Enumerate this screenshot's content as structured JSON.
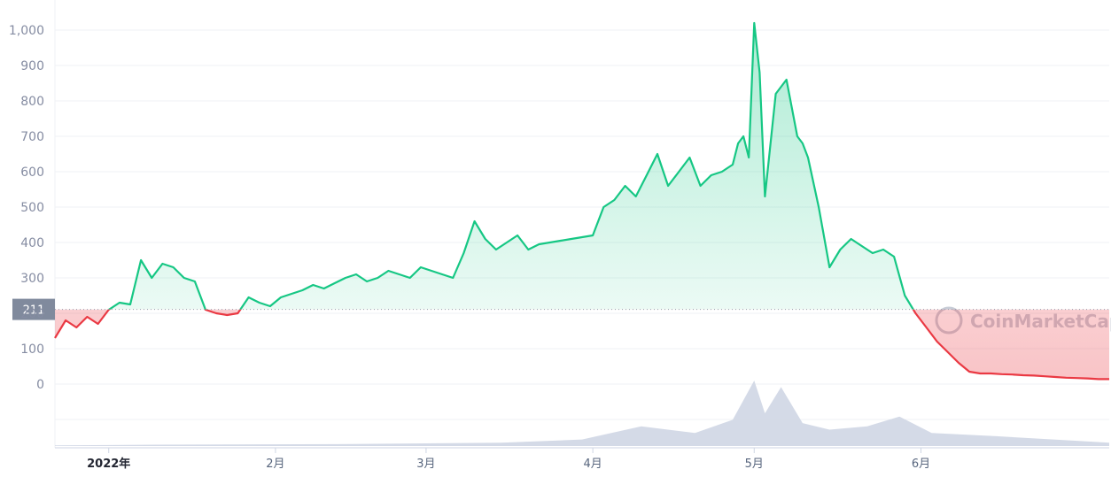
{
  "chart_data": {
    "type": "area",
    "title": "",
    "ylim": [
      0,
      1000
    ],
    "yticks": [
      "0",
      "100",
      "200",
      "300",
      "400",
      "500",
      "600",
      "700",
      "800",
      "900",
      "1,000"
    ],
    "xticks": [
      {
        "label": "2022年",
        "x": "2022-01-01",
        "bold": true
      },
      {
        "label": "2月",
        "x": "2022-02-01",
        "bold": false
      },
      {
        "label": "3月",
        "x": "2022-03-01",
        "bold": false
      },
      {
        "label": "4月",
        "x": "2022-04-01",
        "bold": false
      },
      {
        "label": "5月",
        "x": "2022-05-01",
        "bold": false
      },
      {
        "label": "6月",
        "x": "2022-06-01",
        "bold": false
      }
    ],
    "reference_value": 211,
    "reference_label": "211",
    "colors": {
      "above": "#16c784",
      "below": "#ea3943",
      "grid": "#eff2f5",
      "volume": "#cfd6e4",
      "ref_badge": "#808a9d"
    },
    "watermark": "CoinMarketCap",
    "series": [
      {
        "x": [
          "2021-12-22",
          "2021-12-24",
          "2021-12-26",
          "2021-12-28",
          "2021-12-30",
          "2022-01-01",
          "2022-01-03",
          "2022-01-05",
          "2022-01-07",
          "2022-01-09",
          "2022-01-11",
          "2022-01-13",
          "2022-01-15",
          "2022-01-17",
          "2022-01-19",
          "2022-01-21",
          "2022-01-23",
          "2022-01-25",
          "2022-01-27",
          "2022-01-29",
          "2022-01-31",
          "2022-02-02",
          "2022-02-04",
          "2022-02-06",
          "2022-02-08",
          "2022-02-10",
          "2022-02-12",
          "2022-02-14",
          "2022-02-16",
          "2022-02-18",
          "2022-02-20",
          "2022-02-22",
          "2022-02-24",
          "2022-02-26",
          "2022-02-28",
          "2022-03-02",
          "2022-03-04",
          "2022-03-06",
          "2022-03-08",
          "2022-03-10",
          "2022-03-12",
          "2022-03-14",
          "2022-03-16",
          "2022-03-18",
          "2022-03-20",
          "2022-03-22",
          "2022-03-24",
          "2022-03-26",
          "2022-03-28",
          "2022-03-30",
          "2022-04-01",
          "2022-04-03",
          "2022-04-05",
          "2022-04-07",
          "2022-04-09",
          "2022-04-11",
          "2022-04-13",
          "2022-04-15",
          "2022-04-17",
          "2022-04-19",
          "2022-04-21",
          "2022-04-23",
          "2022-04-25",
          "2022-04-26",
          "2022-04-27",
          "2022-04-28",
          "2022-04-29",
          "2022-04-30",
          "2022-05-01",
          "2022-05-02",
          "2022-05-03",
          "2022-05-05",
          "2022-05-07",
          "2022-05-09",
          "2022-05-10",
          "2022-05-11",
          "2022-05-13",
          "2022-05-15",
          "2022-05-17",
          "2022-05-19",
          "2022-05-21",
          "2022-05-23",
          "2022-05-25",
          "2022-05-27",
          "2022-05-29",
          "2022-05-31",
          "2022-06-02",
          "2022-06-04",
          "2022-06-06",
          "2022-06-08",
          "2022-06-10",
          "2022-06-12",
          "2022-06-14",
          "2022-06-16",
          "2022-06-18",
          "2022-06-20",
          "2022-06-22",
          "2022-06-24",
          "2022-06-26",
          "2022-06-28",
          "2022-06-30",
          "2022-07-02",
          "2022-07-04",
          "2022-07-06"
        ],
        "values": [
          130,
          180,
          160,
          190,
          170,
          210,
          230,
          225,
          350,
          300,
          340,
          330,
          300,
          290,
          210,
          200,
          195,
          200,
          245,
          230,
          220,
          245,
          255,
          265,
          280,
          270,
          285,
          300,
          310,
          290,
          300,
          320,
          310,
          300,
          330,
          320,
          310,
          300,
          370,
          460,
          410,
          380,
          400,
          420,
          380,
          395,
          400,
          405,
          410,
          415,
          420,
          500,
          520,
          560,
          530,
          590,
          650,
          560,
          600,
          640,
          560,
          590,
          600,
          610,
          620,
          680,
          700,
          640,
          1020,
          880,
          530,
          820,
          860,
          700,
          680,
          640,
          500,
          330,
          380,
          410,
          390,
          370,
          380,
          360,
          250,
          200,
          160,
          120,
          90,
          60,
          35,
          30,
          30,
          28,
          27,
          25,
          24,
          22,
          20,
          18,
          17,
          16,
          14,
          14
        ]
      }
    ],
    "volume": {
      "x": [
        "2021-12-22",
        "2022-01-10",
        "2022-02-15",
        "2022-03-15",
        "2022-03-30",
        "2022-04-10",
        "2022-04-20",
        "2022-04-27",
        "2022-05-01",
        "2022-05-03",
        "2022-05-06",
        "2022-05-10",
        "2022-05-15",
        "2022-05-22",
        "2022-05-28",
        "2022-06-03",
        "2022-06-15",
        "2022-06-30",
        "2022-07-06"
      ],
      "values": [
        0.01,
        0.02,
        0.03,
        0.05,
        0.1,
        0.3,
        0.2,
        0.4,
        1.0,
        0.5,
        0.9,
        0.35,
        0.25,
        0.3,
        0.45,
        0.2,
        0.15,
        0.08,
        0.05
      ]
    }
  }
}
